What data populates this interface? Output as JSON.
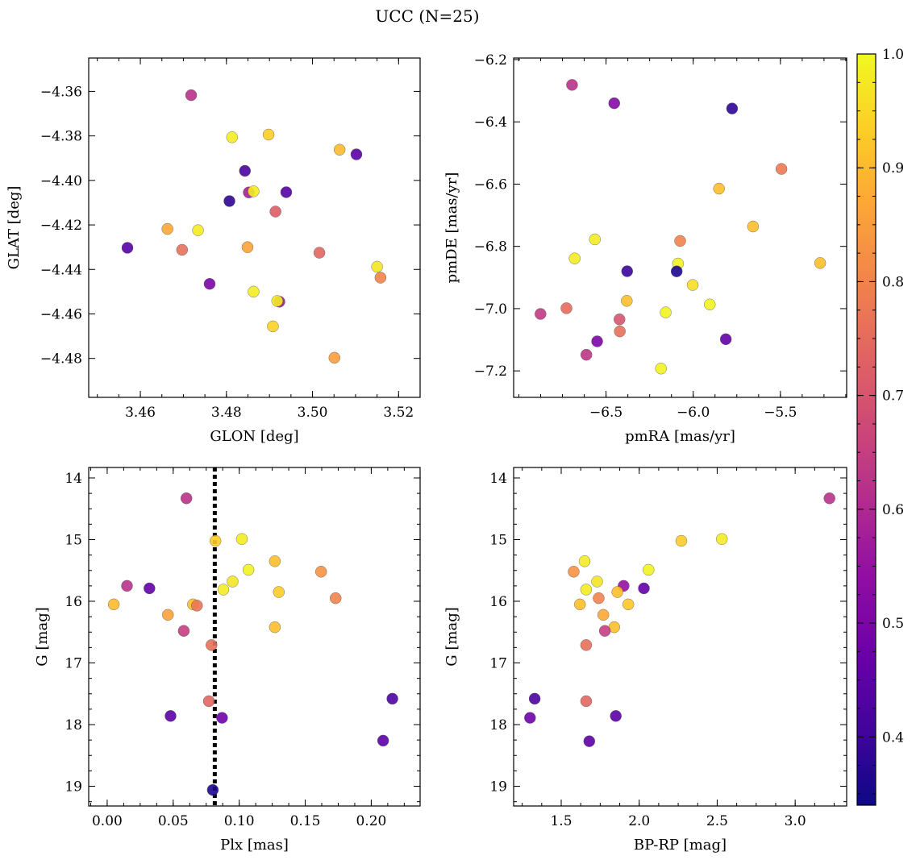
{
  "title": "UCC (N=25)",
  "colorbar": {
    "vmin": 0.34,
    "vmax": 1.0,
    "ticks": [
      0.4,
      0.5,
      0.6,
      0.7,
      0.8,
      0.9,
      1.0
    ],
    "tick_labels": [
      "0.4",
      "0.5",
      "0.6",
      "0.7",
      "0.8",
      "0.9",
      "1.0"
    ],
    "colormap": "plasma"
  },
  "chart_data": [
    {
      "type": "scatter",
      "xlabel": "GLON [deg]",
      "ylabel": "GLAT [deg]",
      "xlim": [
        3.448,
        3.525
      ],
      "ylim": [
        -4.4975,
        -4.345
      ],
      "xticks": [
        3.46,
        3.48,
        3.5,
        3.52
      ],
      "xtick_labels": [
        "3.46",
        "3.48",
        "3.50",
        "3.52"
      ],
      "yticks": [
        -4.36,
        -4.38,
        -4.4,
        -4.42,
        -4.44,
        -4.46,
        -4.48
      ],
      "ytick_labels": [
        "−4.36",
        "−4.38",
        "−4.40",
        "−4.42",
        "−4.44",
        "−4.46",
        "−4.48"
      ],
      "invert_y": false,
      "points": [
        {
          "x": 3.4718,
          "y": -4.3617,
          "c": 0.62
        },
        {
          "x": 3.4813,
          "y": -4.3806,
          "c": 0.98
        },
        {
          "x": 3.4898,
          "y": -4.3794,
          "c": 0.93
        },
        {
          "x": 3.5063,
          "y": -4.3862,
          "c": 0.9
        },
        {
          "x": 3.5102,
          "y": -4.3883,
          "c": 0.45
        },
        {
          "x": 3.4843,
          "y": -4.3957,
          "c": 0.42
        },
        {
          "x": 3.4852,
          "y": -4.4054,
          "c": 0.58
        },
        {
          "x": 3.4863,
          "y": -4.4049,
          "c": 0.98
        },
        {
          "x": 3.4939,
          "y": -4.4053,
          "c": 0.44
        },
        {
          "x": 3.4807,
          "y": -4.4093,
          "c": 0.38
        },
        {
          "x": 3.4914,
          "y": -4.414,
          "c": 0.72
        },
        {
          "x": 3.4663,
          "y": -4.4218,
          "c": 0.87
        },
        {
          "x": 3.4734,
          "y": -4.4224,
          "c": 0.98
        },
        {
          "x": 3.457,
          "y": -4.4303,
          "c": 0.44
        },
        {
          "x": 3.4697,
          "y": -4.4312,
          "c": 0.76
        },
        {
          "x": 3.4849,
          "y": -4.43,
          "c": 0.86
        },
        {
          "x": 3.5016,
          "y": -4.4325,
          "c": 0.74
        },
        {
          "x": 3.515,
          "y": -4.4388,
          "c": 0.97
        },
        {
          "x": 3.5158,
          "y": -4.4437,
          "c": 0.8
        },
        {
          "x": 3.4761,
          "y": -4.4465,
          "c": 0.5
        },
        {
          "x": 3.4863,
          "y": -4.45,
          "c": 0.98
        },
        {
          "x": 3.4923,
          "y": -4.4545,
          "c": 0.56
        },
        {
          "x": 3.4918,
          "y": -4.4542,
          "c": 0.98
        },
        {
          "x": 3.4908,
          "y": -4.4656,
          "c": 0.94
        },
        {
          "x": 3.5051,
          "y": -4.4797,
          "c": 0.85
        }
      ]
    },
    {
      "type": "scatter",
      "xlabel": "pmRA [mas/yr]",
      "ylabel": "pmDE [mas/yr]",
      "xlim": [
        -7.03,
        -5.12
      ],
      "ylim": [
        -7.285,
        -6.195
      ],
      "xticks": [
        -6.5,
        -6.0,
        -5.5
      ],
      "xtick_labels": [
        "−6.5",
        "−6.0",
        "−5.5"
      ],
      "yticks": [
        -6.2,
        -6.4,
        -6.6,
        -6.8,
        -7.0,
        -7.2
      ],
      "ytick_labels": [
        "−6.2",
        "−6.4",
        "−6.6",
        "−6.8",
        "−7.0",
        "−7.2"
      ],
      "invert_y": false,
      "points": [
        {
          "x": -6.695,
          "y": -6.2813,
          "c": 0.62
        },
        {
          "x": -6.453,
          "y": -6.3402,
          "c": 0.52
        },
        {
          "x": -5.777,
          "y": -6.3572,
          "c": 0.38
        },
        {
          "x": -5.494,
          "y": -6.5512,
          "c": 0.78
        },
        {
          "x": -5.852,
          "y": -6.6145,
          "c": 0.91
        },
        {
          "x": -5.657,
          "y": -6.7362,
          "c": 0.91
        },
        {
          "x": -6.564,
          "y": -6.7774,
          "c": 0.98
        },
        {
          "x": -6.075,
          "y": -6.7826,
          "c": 0.8
        },
        {
          "x": -6.68,
          "y": -6.8388,
          "c": 0.98
        },
        {
          "x": -5.272,
          "y": -6.8535,
          "c": 0.91
        },
        {
          "x": -6.087,
          "y": -6.8552,
          "c": 0.99
        },
        {
          "x": -6.379,
          "y": -6.8799,
          "c": 0.4
        },
        {
          "x": -6.095,
          "y": -6.8803,
          "c": 0.36
        },
        {
          "x": -6.003,
          "y": -6.9239,
          "c": 0.96
        },
        {
          "x": -6.381,
          "y": -6.9751,
          "c": 0.91
        },
        {
          "x": -5.905,
          "y": -6.9866,
          "c": 0.99
        },
        {
          "x": -6.727,
          "y": -6.9987,
          "c": 0.75
        },
        {
          "x": -6.876,
          "y": -7.0171,
          "c": 0.64
        },
        {
          "x": -6.158,
          "y": -7.0121,
          "c": 0.99
        },
        {
          "x": -6.423,
          "y": -7.0346,
          "c": 0.7
        },
        {
          "x": -6.421,
          "y": -7.073,
          "c": 0.76
        },
        {
          "x": -6.551,
          "y": -7.1052,
          "c": 0.5
        },
        {
          "x": -5.813,
          "y": -7.0982,
          "c": 0.46
        },
        {
          "x": -6.613,
          "y": -7.1482,
          "c": 0.63
        },
        {
          "x": -6.185,
          "y": -7.1924,
          "c": 0.99
        }
      ]
    },
    {
      "type": "scatter",
      "xlabel": "Plx [mas]",
      "ylabel": "G [mag]",
      "xlim": [
        -0.014,
        0.237
      ],
      "ylim": [
        19.32,
        13.83
      ],
      "xticks": [
        0.0,
        0.05,
        0.1,
        0.15,
        0.2
      ],
      "xtick_labels": [
        "0.00",
        "0.05",
        "0.10",
        "0.15",
        "0.20"
      ],
      "yticks": [
        14,
        15,
        16,
        17,
        18,
        19
      ],
      "ytick_labels": [
        "14",
        "15",
        "16",
        "17",
        "18",
        "19"
      ],
      "invert_y": true,
      "vline": 0.0815,
      "points": [
        {
          "x": 0.06,
          "y": 14.33,
          "c": 0.62
        },
        {
          "x": 0.102,
          "y": 14.99,
          "c": 0.98
        },
        {
          "x": 0.082,
          "y": 15.02,
          "c": 0.93
        },
        {
          "x": 0.127,
          "y": 15.35,
          "c": 0.91
        },
        {
          "x": 0.107,
          "y": 15.49,
          "c": 0.99
        },
        {
          "x": 0.162,
          "y": 15.52,
          "c": 0.83
        },
        {
          "x": 0.095,
          "y": 15.68,
          "c": 0.97
        },
        {
          "x": 0.015,
          "y": 15.75,
          "c": 0.62
        },
        {
          "x": 0.032,
          "y": 15.79,
          "c": 0.46
        },
        {
          "x": 0.088,
          "y": 15.81,
          "c": 0.98
        },
        {
          "x": 0.13,
          "y": 15.85,
          "c": 0.93
        },
        {
          "x": 0.173,
          "y": 15.95,
          "c": 0.8
        },
        {
          "x": 0.005,
          "y": 16.05,
          "c": 0.9
        },
        {
          "x": 0.065,
          "y": 16.05,
          "c": 0.91
        },
        {
          "x": 0.068,
          "y": 16.07,
          "c": 0.77
        },
        {
          "x": 0.046,
          "y": 16.22,
          "c": 0.86
        },
        {
          "x": 0.127,
          "y": 16.42,
          "c": 0.91
        },
        {
          "x": 0.058,
          "y": 16.48,
          "c": 0.65
        },
        {
          "x": 0.079,
          "y": 16.71,
          "c": 0.76
        },
        {
          "x": 0.077,
          "y": 17.62,
          "c": 0.74
        },
        {
          "x": 0.216,
          "y": 17.58,
          "c": 0.42
        },
        {
          "x": 0.048,
          "y": 17.86,
          "c": 0.45
        },
        {
          "x": 0.087,
          "y": 17.89,
          "c": 0.48
        },
        {
          "x": 0.209,
          "y": 18.26,
          "c": 0.45
        },
        {
          "x": 0.08,
          "y": 19.06,
          "c": 0.36
        }
      ]
    },
    {
      "type": "scatter",
      "xlabel": "BP-RP [mag]",
      "ylabel": "G [mag]",
      "xlim": [
        1.195,
        3.33
      ],
      "ylim": [
        19.32,
        13.83
      ],
      "xticks": [
        1.5,
        2.0,
        2.5,
        3.0
      ],
      "xtick_labels": [
        "1.5",
        "2.0",
        "2.5",
        "3.0"
      ],
      "yticks": [
        14,
        15,
        16,
        17,
        18,
        19
      ],
      "ytick_labels": [
        "14",
        "15",
        "16",
        "17",
        "18",
        "19"
      ],
      "invert_y": true,
      "points": [
        {
          "x": 3.22,
          "y": 14.33,
          "c": 0.62
        },
        {
          "x": 2.53,
          "y": 14.99,
          "c": 0.98
        },
        {
          "x": 2.27,
          "y": 15.02,
          "c": 0.93
        },
        {
          "x": 1.65,
          "y": 15.35,
          "c": 0.98
        },
        {
          "x": 2.06,
          "y": 15.49,
          "c": 0.99
        },
        {
          "x": 1.58,
          "y": 15.52,
          "c": 0.83
        },
        {
          "x": 1.73,
          "y": 15.68,
          "c": 0.97
        },
        {
          "x": 1.9,
          "y": 15.75,
          "c": 0.55
        },
        {
          "x": 2.03,
          "y": 15.79,
          "c": 0.46
        },
        {
          "x": 1.66,
          "y": 15.81,
          "c": 0.98
        },
        {
          "x": 1.86,
          "y": 15.85,
          "c": 0.91
        },
        {
          "x": 1.74,
          "y": 15.95,
          "c": 0.8
        },
        {
          "x": 1.62,
          "y": 16.05,
          "c": 0.91
        },
        {
          "x": 1.93,
          "y": 16.05,
          "c": 0.92
        },
        {
          "x": 1.77,
          "y": 16.22,
          "c": 0.87
        },
        {
          "x": 1.84,
          "y": 16.42,
          "c": 0.91
        },
        {
          "x": 1.78,
          "y": 16.48,
          "c": 0.65
        },
        {
          "x": 1.66,
          "y": 16.71,
          "c": 0.76
        },
        {
          "x": 1.66,
          "y": 17.62,
          "c": 0.74
        },
        {
          "x": 1.33,
          "y": 17.58,
          "c": 0.42
        },
        {
          "x": 1.3,
          "y": 17.89,
          "c": 0.48
        },
        {
          "x": 1.85,
          "y": 17.86,
          "c": 0.45
        },
        {
          "x": 1.68,
          "y": 18.27,
          "c": 0.45
        }
      ]
    }
  ]
}
